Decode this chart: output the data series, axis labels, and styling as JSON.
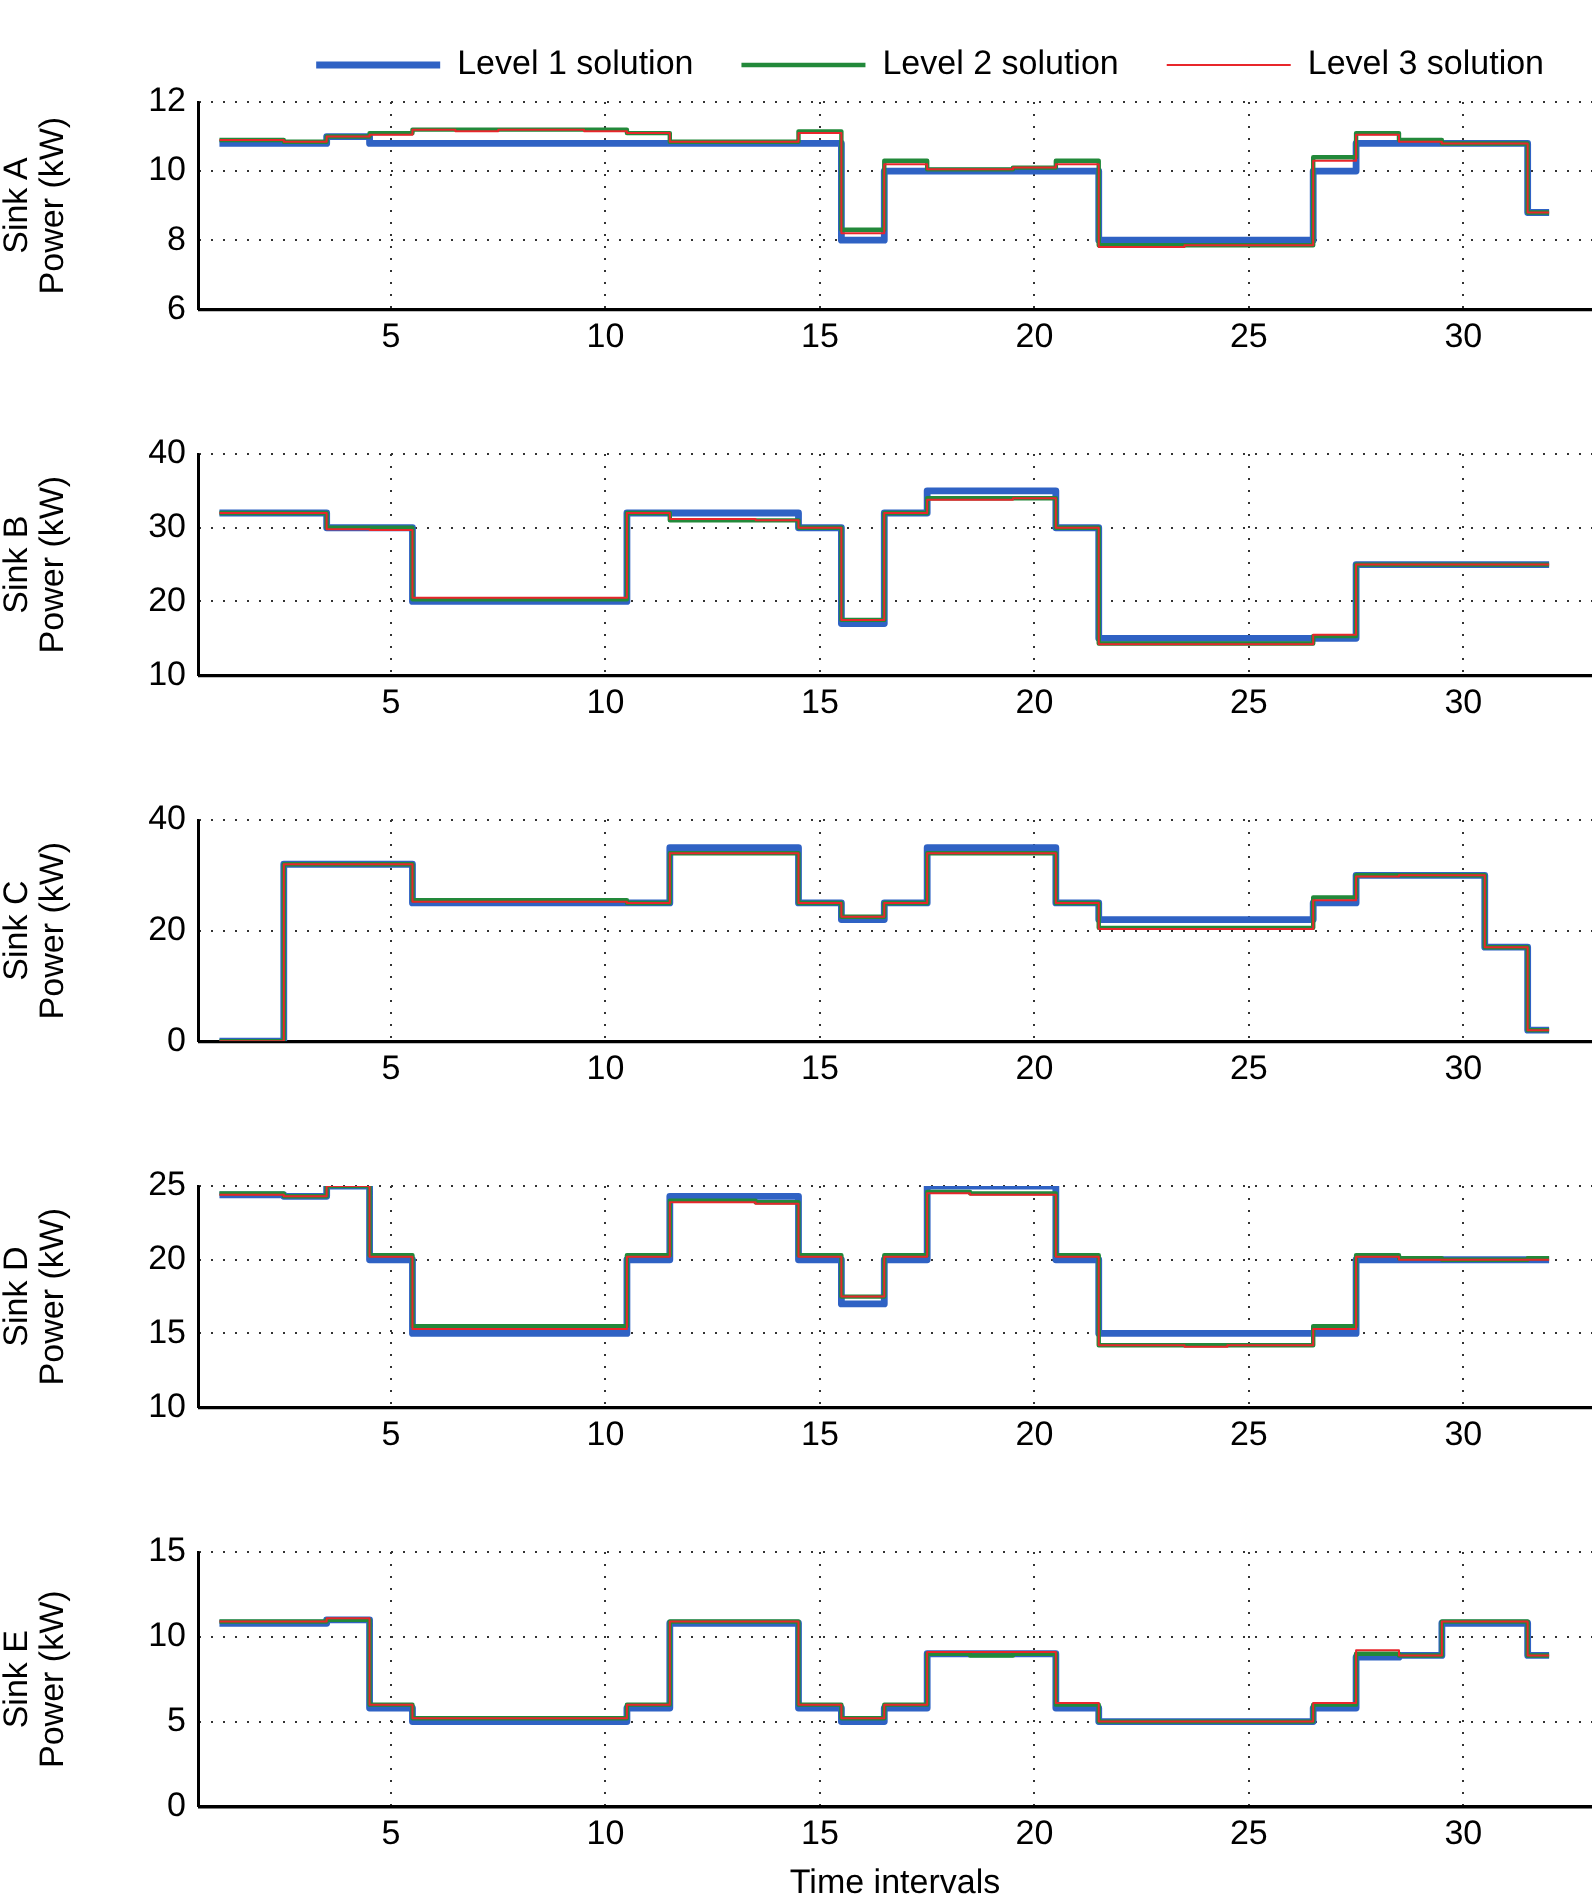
{
  "chart_data": [
    {
      "type": "step",
      "ylabel": "Sink A\nPower (kW)",
      "legend": "top",
      "grid": true,
      "marker": "none",
      "line_style": "solid",
      "x": [
        1,
        2,
        3,
        4,
        5,
        6,
        7,
        8,
        9,
        10,
        11,
        12,
        13,
        14,
        15,
        16,
        17,
        18,
        19,
        20,
        21,
        22,
        23,
        24,
        25,
        26,
        27,
        28,
        29,
        30,
        31,
        32
      ],
      "xlim": [
        0.5,
        33
      ],
      "xticks": [
        5,
        10,
        15,
        20,
        25,
        30
      ],
      "ylim": [
        6,
        12
      ],
      "yticks": [
        6,
        8,
        10,
        12
      ],
      "series": [
        {
          "name": "Level 1 solution",
          "color": "#2f62c4",
          "values": [
            10.8,
            10.8,
            10.8,
            11.0,
            10.8,
            10.8,
            10.8,
            10.8,
            10.8,
            10.8,
            10.8,
            10.8,
            10.8,
            10.8,
            10.8,
            8.0,
            10.0,
            10.0,
            10.0,
            10.0,
            10.0,
            8.0,
            8.0,
            8.0,
            8.0,
            8.0,
            10.0,
            10.8,
            10.8,
            10.8,
            10.8,
            8.8
          ]
        },
        {
          "name": "Level 2 solution",
          "color": "#22893a",
          "values": [
            10.9,
            10.9,
            10.85,
            11.0,
            11.1,
            11.2,
            11.2,
            11.2,
            11.2,
            11.2,
            11.1,
            10.85,
            10.85,
            10.85,
            11.15,
            8.3,
            10.3,
            10.05,
            10.05,
            10.1,
            10.3,
            7.85,
            7.85,
            7.85,
            7.85,
            7.85,
            10.4,
            11.1,
            10.9,
            10.8,
            10.8,
            8.8
          ]
        },
        {
          "name": "Level 3 solution",
          "color": "#e8262b",
          "values": [
            10.9,
            10.9,
            10.85,
            11.0,
            11.05,
            11.2,
            11.15,
            11.2,
            11.2,
            11.15,
            11.1,
            10.85,
            10.85,
            10.85,
            11.1,
            8.2,
            10.2,
            10.05,
            10.05,
            10.1,
            10.2,
            7.8,
            7.8,
            7.85,
            7.85,
            7.85,
            10.3,
            11.05,
            10.85,
            10.8,
            10.8,
            8.8
          ]
        }
      ]
    },
    {
      "type": "step",
      "ylabel": "Sink B\nPower (kW)",
      "grid": true,
      "marker": "none",
      "line_style": "solid",
      "x": [
        1,
        2,
        3,
        4,
        5,
        6,
        7,
        8,
        9,
        10,
        11,
        12,
        13,
        14,
        15,
        16,
        17,
        18,
        19,
        20,
        21,
        22,
        23,
        24,
        25,
        26,
        27,
        28,
        29,
        30,
        31,
        32
      ],
      "xlim": [
        0.5,
        33
      ],
      "xticks": [
        5,
        10,
        15,
        20,
        25,
        30
      ],
      "ylim": [
        10,
        40
      ],
      "yticks": [
        10,
        20,
        30,
        40
      ],
      "series": [
        {
          "color": "#2f62c4",
          "values": [
            32,
            32,
            32,
            30,
            30,
            20,
            20,
            20,
            20,
            20,
            32,
            32,
            32,
            32,
            30,
            17,
            32,
            35,
            35,
            35,
            30,
            15,
            15,
            15,
            15,
            15,
            15,
            25,
            25,
            25,
            25,
            25
          ]
        },
        {
          "color": "#22893a",
          "values": [
            32,
            32,
            32,
            30,
            30,
            20.3,
            20.3,
            20.3,
            20.3,
            20.3,
            32,
            31,
            31,
            31,
            30,
            17.5,
            32,
            34,
            34,
            34,
            30,
            14.3,
            14.3,
            14.3,
            14.3,
            14.3,
            15.3,
            25,
            25,
            25,
            25,
            25
          ]
        },
        {
          "color": "#e8262b",
          "values": [
            32,
            32,
            32,
            29.8,
            29.7,
            20.5,
            20.5,
            20.5,
            20.5,
            20.5,
            32,
            31.2,
            31.2,
            31,
            30,
            17.5,
            32,
            33.8,
            33.8,
            34,
            30,
            14.2,
            14.2,
            14.2,
            14.2,
            14.2,
            15.5,
            25,
            25,
            25,
            25,
            25
          ]
        }
      ]
    },
    {
      "type": "step",
      "ylabel": "Sink C\nPower (kW)",
      "grid": true,
      "marker": "none",
      "line_style": "solid",
      "x": [
        1,
        2,
        3,
        4,
        5,
        6,
        7,
        8,
        9,
        10,
        11,
        12,
        13,
        14,
        15,
        16,
        17,
        18,
        19,
        20,
        21,
        22,
        23,
        24,
        25,
        26,
        27,
        28,
        29,
        30,
        31,
        32
      ],
      "xlim": [
        0.5,
        33
      ],
      "xticks": [
        5,
        10,
        15,
        20,
        25,
        30
      ],
      "ylim": [
        0,
        40
      ],
      "yticks": [
        0,
        20,
        40
      ],
      "series": [
        {
          "color": "#2f62c4",
          "values": [
            0,
            0,
            32,
            32,
            32,
            25,
            25,
            25,
            25,
            25,
            25,
            35,
            35,
            35,
            25,
            22,
            25,
            35,
            35,
            35,
            25,
            22,
            22,
            22,
            22,
            22,
            25,
            30,
            30,
            30,
            17,
            2
          ]
        },
        {
          "color": "#22893a",
          "values": [
            0,
            0,
            32,
            32,
            32,
            25.5,
            25.5,
            25.5,
            25.5,
            25.5,
            25,
            34,
            34,
            34,
            25,
            22.5,
            25,
            34,
            34,
            34,
            25,
            20.5,
            20.5,
            20.5,
            20.5,
            20.5,
            26,
            30,
            30,
            30,
            17,
            2
          ]
        },
        {
          "color": "#e8262b",
          "values": [
            0,
            0,
            32,
            32,
            32,
            25.2,
            25.2,
            25.2,
            25.2,
            25.2,
            25,
            34,
            34,
            34,
            25,
            22.5,
            25,
            34,
            34,
            34,
            25,
            20.3,
            20.3,
            20.3,
            20.3,
            20.3,
            25.5,
            29.8,
            30,
            30,
            17,
            2
          ]
        }
      ]
    },
    {
      "type": "step",
      "ylabel": "Sink D\nPower (kW)",
      "grid": true,
      "marker": "none",
      "line_style": "solid",
      "x": [
        1,
        2,
        3,
        4,
        5,
        6,
        7,
        8,
        9,
        10,
        11,
        12,
        13,
        14,
        15,
        16,
        17,
        18,
        19,
        20,
        21,
        22,
        23,
        24,
        25,
        26,
        27,
        28,
        29,
        30,
        31,
        32
      ],
      "xlim": [
        0.5,
        33
      ],
      "xticks": [
        5,
        10,
        15,
        20,
        25,
        30
      ],
      "ylim": [
        10,
        25
      ],
      "yticks": [
        10,
        15,
        20,
        25
      ],
      "series": [
        {
          "color": "#2f62c4",
          "values": [
            24.4,
            24.4,
            24.3,
            25,
            20,
            15,
            15,
            15,
            15,
            15,
            20,
            24.3,
            24.3,
            24.3,
            20,
            17,
            20,
            25,
            25,
            25,
            20,
            15,
            15,
            15,
            15,
            15,
            15,
            20,
            20,
            20,
            20,
            20
          ]
        },
        {
          "color": "#22893a",
          "values": [
            24.5,
            24.5,
            24.3,
            25,
            20.3,
            15.5,
            15.5,
            15.5,
            15.5,
            15.5,
            20.3,
            24,
            24,
            23.9,
            20.3,
            17.5,
            20.3,
            24.6,
            24.5,
            24.5,
            20.3,
            14.2,
            14.2,
            14.2,
            14.2,
            14.2,
            15.5,
            20.3,
            20.1,
            20,
            20,
            20.1
          ]
        },
        {
          "color": "#e8262b",
          "values": [
            24.4,
            24.4,
            24.3,
            25,
            20.2,
            15.3,
            15.3,
            15.3,
            15.3,
            15.3,
            20.2,
            23.9,
            23.9,
            23.8,
            20.2,
            17.5,
            20.2,
            24.5,
            24.4,
            24.4,
            20.2,
            14.2,
            14.2,
            14.1,
            14.2,
            14.2,
            15.3,
            20.2,
            20,
            20,
            20,
            20
          ]
        }
      ]
    },
    {
      "type": "step",
      "ylabel": "Sink E\nPower (kW)",
      "xlabel": "Time intervals",
      "grid": true,
      "marker": "none",
      "line_style": "solid",
      "x": [
        1,
        2,
        3,
        4,
        5,
        6,
        7,
        8,
        9,
        10,
        11,
        12,
        13,
        14,
        15,
        16,
        17,
        18,
        19,
        20,
        21,
        22,
        23,
        24,
        25,
        26,
        27,
        28,
        29,
        30,
        31,
        32
      ],
      "xlim": [
        0.5,
        33
      ],
      "xticks": [
        5,
        10,
        15,
        20,
        25,
        30
      ],
      "ylim": [
        0,
        15
      ],
      "yticks": [
        0,
        5,
        10,
        15
      ],
      "series": [
        {
          "color": "#2f62c4",
          "values": [
            10.8,
            10.8,
            10.8,
            11,
            5.8,
            5,
            5,
            5,
            5,
            5,
            5.8,
            10.8,
            10.8,
            10.8,
            5.8,
            5,
            5.8,
            9,
            9,
            9,
            5.8,
            5,
            5,
            5,
            5,
            5,
            5.8,
            8.8,
            8.9,
            10.8,
            10.8,
            8.9
          ]
        },
        {
          "color": "#22893a",
          "values": [
            10.9,
            10.9,
            10.9,
            11,
            6,
            5.2,
            5.2,
            5.2,
            5.2,
            5.2,
            6,
            10.9,
            10.9,
            10.9,
            6,
            5.2,
            6,
            9,
            8.9,
            9,
            6,
            5,
            5,
            5,
            5,
            5,
            6,
            9,
            8.9,
            10.9,
            10.9,
            8.9
          ]
        },
        {
          "color": "#e8262b",
          "values": [
            10.9,
            10.9,
            10.9,
            11.1,
            6,
            5.2,
            5.2,
            5.2,
            5.2,
            5.2,
            6,
            10.9,
            10.9,
            10.9,
            6,
            5.2,
            6,
            9.1,
            9.1,
            9.1,
            6.1,
            5,
            5,
            5,
            5,
            5,
            6.1,
            9.2,
            8.9,
            10.9,
            10.9,
            8.9
          ]
        }
      ]
    }
  ]
}
